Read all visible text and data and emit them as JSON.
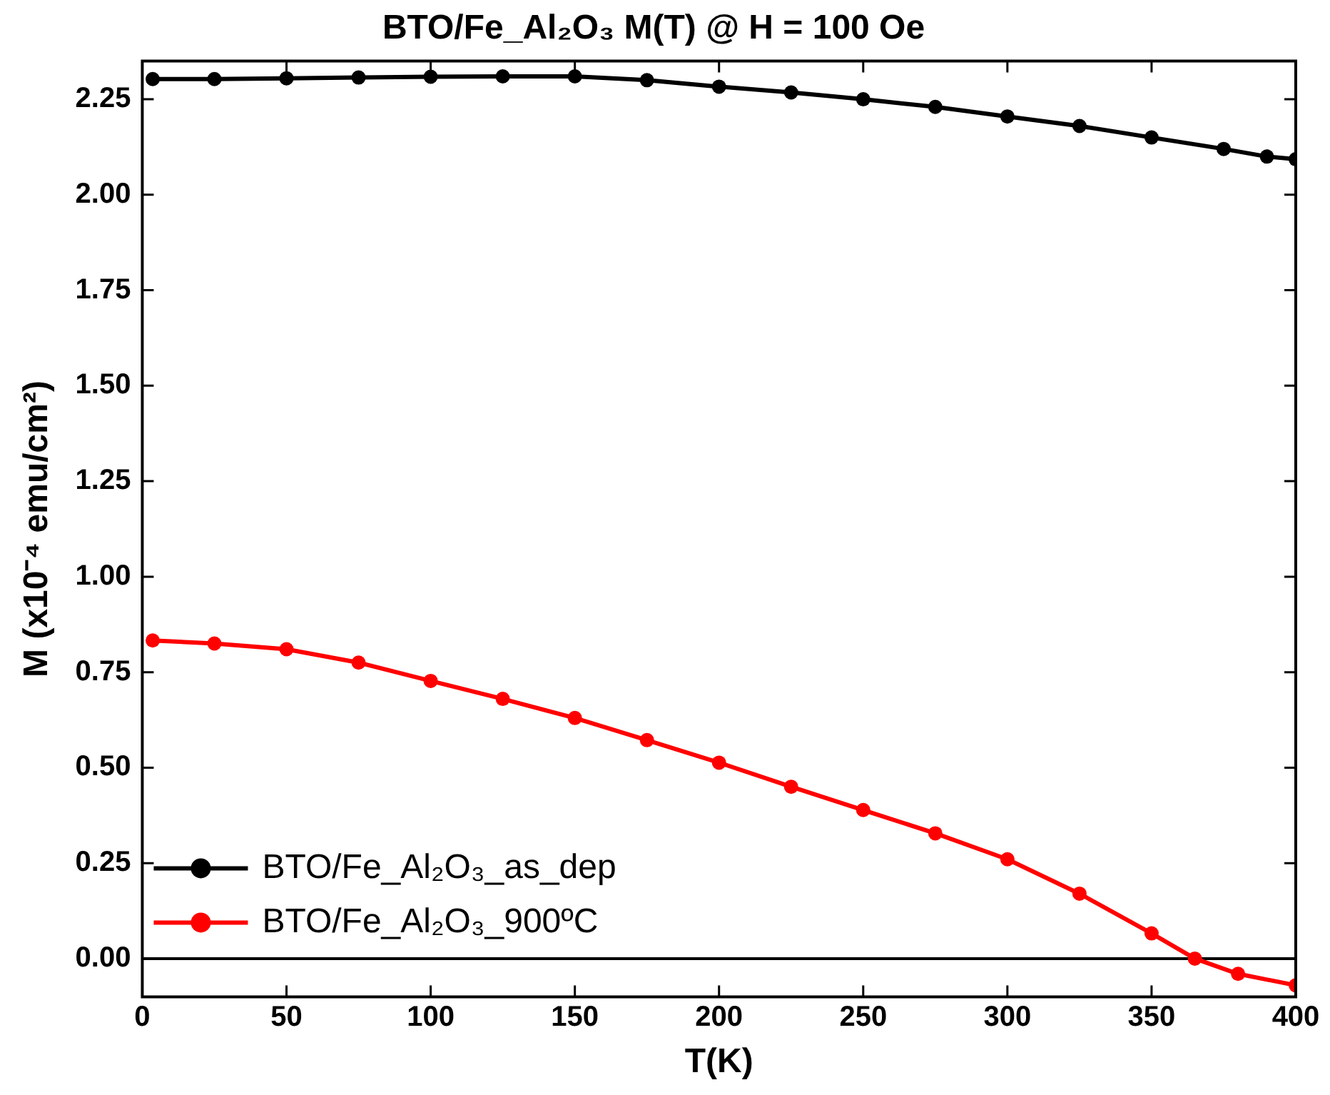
{
  "chart_data": {
    "type": "line",
    "title": "BTO/Fe_Al₂O₃ M(T) @ H = 100 Oe",
    "xlabel": "T(K)",
    "ylabel": "M (x10⁻⁴ emu/cm²)",
    "series": [
      {
        "name": "BTO/Fe_Al₂O₃_as_dep",
        "color": "#000000",
        "x": [
          3.6,
          25,
          50,
          75,
          100,
          125,
          150,
          175,
          200,
          225,
          250,
          275,
          300,
          325,
          350,
          375,
          390,
          400
        ],
        "values": [
          2.303,
          2.303,
          2.305,
          2.307,
          2.309,
          2.31,
          2.31,
          2.3,
          2.283,
          2.268,
          2.25,
          2.23,
          2.205,
          2.18,
          2.15,
          2.12,
          2.1,
          2.093
        ]
      },
      {
        "name": "BTO/Fe_Al₂O₃_900ºC",
        "color": "#ff0000",
        "x": [
          3.6,
          25,
          50,
          75,
          100,
          125,
          150,
          175,
          200,
          225,
          250,
          275,
          300,
          325,
          350,
          365,
          380,
          400
        ],
        "values": [
          0.833,
          0.825,
          0.81,
          0.775,
          0.727,
          0.68,
          0.63,
          0.572,
          0.513,
          0.45,
          0.389,
          0.328,
          0.26,
          0.17,
          0.066,
          0.0,
          -0.04,
          -0.07
        ]
      }
    ],
    "xlim": [
      0,
      400
    ],
    "xticks": [
      0,
      50,
      100,
      150,
      200,
      250,
      300,
      350,
      400
    ],
    "ylim": [
      -0.1,
      2.35
    ],
    "yticks": [
      {
        "value": 0,
        "label": "0.00"
      },
      {
        "value": 0.25,
        "label": "0.25"
      },
      {
        "value": 0.5,
        "label": "0.50"
      },
      {
        "value": 0.75,
        "label": "0.75"
      },
      {
        "value": 1,
        "label": "1.00"
      },
      {
        "value": 1.25,
        "label": "1.25"
      },
      {
        "value": 1.5,
        "label": "1.50"
      },
      {
        "value": 1.75,
        "label": "1.75"
      },
      {
        "value": 2,
        "label": "2.00"
      },
      {
        "value": 2.25,
        "label": "2.25"
      }
    ],
    "ref_lines": [
      {
        "axis": "y",
        "value": 0,
        "color": "#000000"
      }
    ],
    "legend": "bottom left",
    "marker": "circle",
    "line_style": "solid",
    "grid": false
  }
}
